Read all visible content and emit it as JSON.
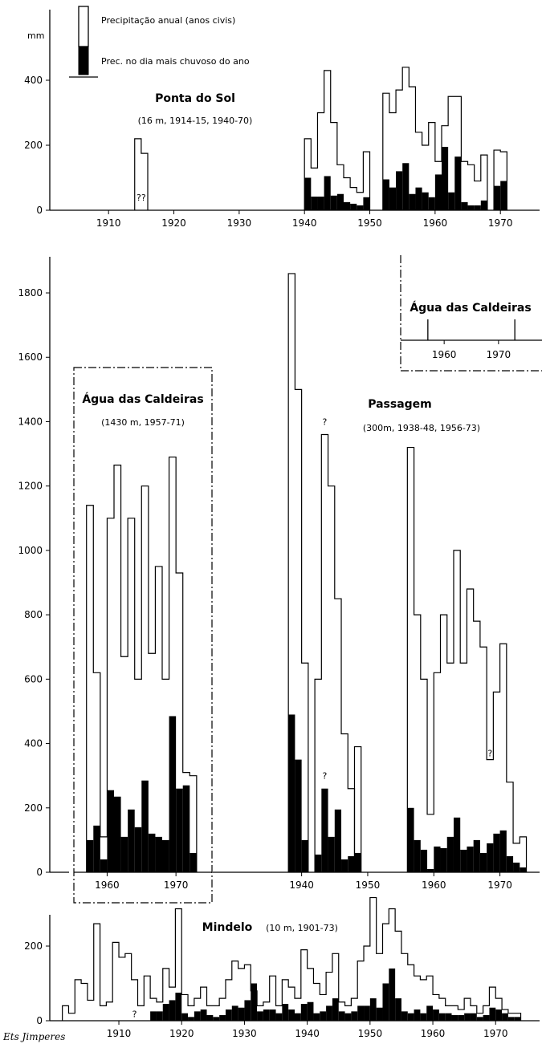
{
  "legend": {
    "annual_label": "Precipitação anual (anos civis)",
    "maxday_label": "Prec. no dia mais chuvoso do ano"
  },
  "signature": "Ets Jimperes",
  "chart_data": [
    {
      "id": "ponta-do-sol",
      "type": "bar",
      "title": "Ponta do Sol",
      "subtitle": "(16 m, 1914-15, 1940-70)",
      "ylabel": "mm",
      "xlim": [
        1901,
        1976
      ],
      "ylim": [
        0,
        480
      ],
      "xticks": [
        1910,
        1920,
        1930,
        1940,
        1950,
        1960,
        1970
      ],
      "yticks": [
        0,
        200,
        400
      ],
      "annotations": [
        {
          "year": 1914.5,
          "value": 30,
          "text": "??"
        }
      ],
      "series": [
        {
          "name": "Precipitação anual (anos civis)",
          "style": "step",
          "segments": [
            {
              "years": [
                1914,
                1915
              ],
              "values": [
                220,
                175
              ]
            },
            {
              "years": [
                1940,
                1941,
                1942,
                1943,
                1944,
                1945,
                1946,
                1947,
                1948,
                1949
              ],
              "values": [
                220,
                130,
                300,
                430,
                270,
                140,
                100,
                70,
                55,
                180
              ]
            },
            {
              "years": [
                1952,
                1953,
                1954,
                1955,
                1956,
                1957,
                1958,
                1959,
                1960,
                1961,
                1962,
                1963,
                1964,
                1965,
                1966,
                1967
              ],
              "values": [
                360,
                300,
                370,
                440,
                380,
                240,
                200,
                270,
                150,
                260,
                350,
                350,
                150,
                140,
                90,
                170
              ]
            },
            {
              "years": [
                1969,
                1970
              ],
              "values": [
                185,
                180
              ]
            }
          ]
        },
        {
          "name": "Prec. no dia mais chuvoso do ano",
          "style": "filled",
          "segments": [
            {
              "years": [
                1940,
                1941,
                1942,
                1943,
                1944,
                1945,
                1946,
                1947,
                1948,
                1949
              ],
              "values": [
                100,
                42,
                42,
                105,
                45,
                50,
                25,
                20,
                15,
                40
              ]
            },
            {
              "years": [
                1952,
                1953,
                1954,
                1955,
                1956,
                1957,
                1958,
                1959,
                1960,
                1961,
                1962,
                1963,
                1964,
                1965,
                1966,
                1967
              ],
              "values": [
                95,
                70,
                120,
                145,
                50,
                70,
                55,
                40,
                110,
                195,
                55,
                165,
                25,
                15,
                15,
                30
              ]
            },
            {
              "years": [
                1969,
                1970
              ],
              "values": [
                75,
                90
              ]
            }
          ]
        }
      ]
    },
    {
      "id": "passagem",
      "type": "bar",
      "title": "Passagem",
      "subtitle": "(300m, 1938-48, 1956-73)",
      "xlim": [
        1933,
        1976
      ],
      "ylim": [
        0,
        1900
      ],
      "xticks": [
        1940,
        1950,
        1960,
        1970
      ],
      "yticks": [
        0,
        200,
        400,
        600,
        800,
        1000,
        1200,
        1400,
        1600,
        1800
      ],
      "annotations": [
        {
          "year": 1943,
          "value": 1390,
          "text": "?"
        },
        {
          "year": 1943,
          "value": 290,
          "text": "?"
        },
        {
          "year": 1968,
          "value": 360,
          "text": "?"
        }
      ],
      "series": [
        {
          "name": "Precipitação anual (anos civis)",
          "style": "step",
          "segments": [
            {
              "years": [
                1938,
                1939,
                1940
              ],
              "values": [
                1860,
                1500,
                650
              ]
            },
            {
              "years": [
                1942,
                1943,
                1944,
                1945,
                1946,
                1947
              ],
              "values": [
                600,
                1360,
                1200,
                850,
                430,
                260
              ]
            },
            {
              "years": [
                1948
              ],
              "values": [
                390
              ]
            },
            {
              "years": [
                1956,
                1957,
                1958,
                1959,
                1960,
                1961,
                1962,
                1963,
                1964,
                1965,
                1966,
                1967,
                1968,
                1969,
                1970,
                1971,
                1972,
                1973
              ],
              "values": [
                1320,
                800,
                600,
                180,
                620,
                800,
                650,
                1000,
                650,
                880,
                780,
                700,
                350,
                560,
                710,
                280,
                90,
                110
              ]
            }
          ]
        },
        {
          "name": "Prec. no dia mais chuvoso do ano",
          "style": "filled",
          "segments": [
            {
              "years": [
                1938,
                1939,
                1940
              ],
              "values": [
                490,
                350,
                100
              ]
            },
            {
              "years": [
                1942,
                1943,
                1944,
                1945,
                1946,
                1947,
                1948
              ],
              "values": [
                55,
                260,
                110,
                195,
                40,
                50,
                60
              ]
            },
            {
              "years": [
                1956,
                1957,
                1958,
                1959,
                1960,
                1961,
                1962,
                1963,
                1964,
                1965,
                1966,
                1967,
                1968,
                1969,
                1970,
                1971,
                1972,
                1973
              ],
              "values": [
                200,
                100,
                70,
                10,
                80,
                75,
                110,
                170,
                70,
                80,
                100,
                60,
                90,
                120,
                130,
                50,
                30,
                15
              ]
            }
          ]
        }
      ]
    },
    {
      "id": "agua-das-caldeiras",
      "type": "bar",
      "title": "Água das Caldeiras",
      "subtitle": "(1430 m, 1957-71)",
      "xlim": [
        1954,
        1975
      ],
      "ylim": [
        0,
        1900
      ],
      "xticks": [
        1960,
        1970
      ],
      "series": [
        {
          "name": "Precipitação anual (anos civis)",
          "style": "step",
          "segments": [
            {
              "years": [
                1957,
                1958,
                1959,
                1960,
                1961,
                1962,
                1963,
                1964,
                1965,
                1966,
                1967,
                1968,
                1969,
                1970,
                1971,
                1972
              ],
              "values": [
                1140,
                620,
                110,
                1100,
                1265,
                670,
                1100,
                600,
                1200,
                680,
                950,
                600,
                1290,
                930,
                310,
                300
              ]
            }
          ]
        },
        {
          "name": "Prec. no dia mais chuvoso do ano",
          "style": "filled",
          "segments": [
            {
              "years": [
                1957,
                1958,
                1959,
                1960,
                1961,
                1962,
                1963,
                1964,
                1965,
                1966,
                1967,
                1968,
                1969,
                1970,
                1971,
                1972
              ],
              "values": [
                100,
                145,
                40,
                255,
                235,
                110,
                195,
                140,
                285,
                120,
                110,
                100,
                485,
                260,
                270,
                60
              ]
            }
          ]
        }
      ]
    },
    {
      "id": "agua-das-caldeiras-inset",
      "type": "bar",
      "title": "Água das Caldeiras",
      "xlim": [
        1952,
        1978
      ],
      "xticks": [
        1960,
        1970
      ],
      "markers": [
        1957,
        1973
      ]
    },
    {
      "id": "mindelo",
      "type": "bar",
      "title": "Mindelo",
      "subtitle": "(10 m, 1901-73)",
      "xlim": [
        1899,
        1977
      ],
      "ylim": [
        0,
        340
      ],
      "xticks": [
        1910,
        1920,
        1930,
        1940,
        1950,
        1960,
        1970
      ],
      "yticks": [
        0,
        200
      ],
      "annotations": [
        {
          "year": 1912,
          "value": 10,
          "text": "?"
        }
      ],
      "series": [
        {
          "name": "Precipitação anual (anos civis)",
          "style": "step",
          "segments": [
            {
              "years": [
                1901,
                1902,
                1903,
                1904,
                1905,
                1906,
                1907,
                1908,
                1909,
                1910,
                1911,
                1912,
                1913,
                1914,
                1915,
                1916,
                1917,
                1918,
                1919,
                1920,
                1921,
                1922,
                1923,
                1924,
                1925,
                1926,
                1927,
                1928,
                1929,
                1930,
                1931,
                1932,
                1933,
                1934,
                1935,
                1936,
                1937,
                1938,
                1939,
                1940,
                1941,
                1942,
                1943,
                1944,
                1945,
                1946,
                1947,
                1948,
                1949,
                1950,
                1951,
                1952,
                1953,
                1954,
                1955,
                1956,
                1957,
                1958,
                1959,
                1960,
                1961,
                1962,
                1963,
                1964,
                1965,
                1966,
                1967,
                1968,
                1969,
                1970,
                1971,
                1972,
                1973
              ],
              "values": [
                40,
                20,
                110,
                100,
                55,
                260,
                40,
                50,
                210,
                170,
                180,
                110,
                40,
                120,
                60,
                50,
                140,
                90,
                300,
                70,
                40,
                60,
                90,
                40,
                40,
                60,
                110,
                160,
                140,
                150,
                80,
                40,
                50,
                120,
                40,
                110,
                90,
                60,
                190,
                140,
                100,
                70,
                130,
                180,
                50,
                40,
                60,
                160,
                200,
                330,
                180,
                260,
                300,
                240,
                180,
                150,
                120,
                110,
                120,
                70,
                60,
                40,
                40,
                30,
                60,
                40,
                20,
                40,
                90,
                60,
                30,
                20,
                20
              ]
            }
          ]
        },
        {
          "name": "Prec. no dia mais chuvoso do ano",
          "style": "filled",
          "segments": [
            {
              "years": [
                1915,
                1916,
                1917,
                1918,
                1919,
                1920,
                1921,
                1922,
                1923,
                1924,
                1925,
                1926,
                1927,
                1928,
                1929,
                1930,
                1931,
                1932,
                1933,
                1934,
                1935,
                1936,
                1937,
                1938,
                1939,
                1940,
                1941,
                1942,
                1943,
                1944,
                1945,
                1946,
                1947,
                1948,
                1949,
                1950,
                1951,
                1952,
                1953,
                1954,
                1955,
                1956,
                1957,
                1958,
                1959,
                1960,
                1961,
                1962,
                1963,
                1964,
                1965,
                1966,
                1967,
                1968,
                1969,
                1970,
                1971,
                1972,
                1973
              ],
              "values": [
                25,
                25,
                45,
                55,
                75,
                20,
                10,
                25,
                30,
                15,
                10,
                15,
                30,
                40,
                35,
                55,
                100,
                25,
                30,
                30,
                20,
                45,
                30,
                20,
                45,
                50,
                20,
                25,
                40,
                60,
                25,
                20,
                25,
                40,
                40,
                60,
                35,
                100,
                140,
                60,
                25,
                20,
                30,
                20,
                40,
                30,
                20,
                20,
                15,
                15,
                20,
                20,
                10,
                15,
                35,
                30,
                20,
                10,
                10
              ]
            }
          ]
        }
      ]
    }
  ]
}
